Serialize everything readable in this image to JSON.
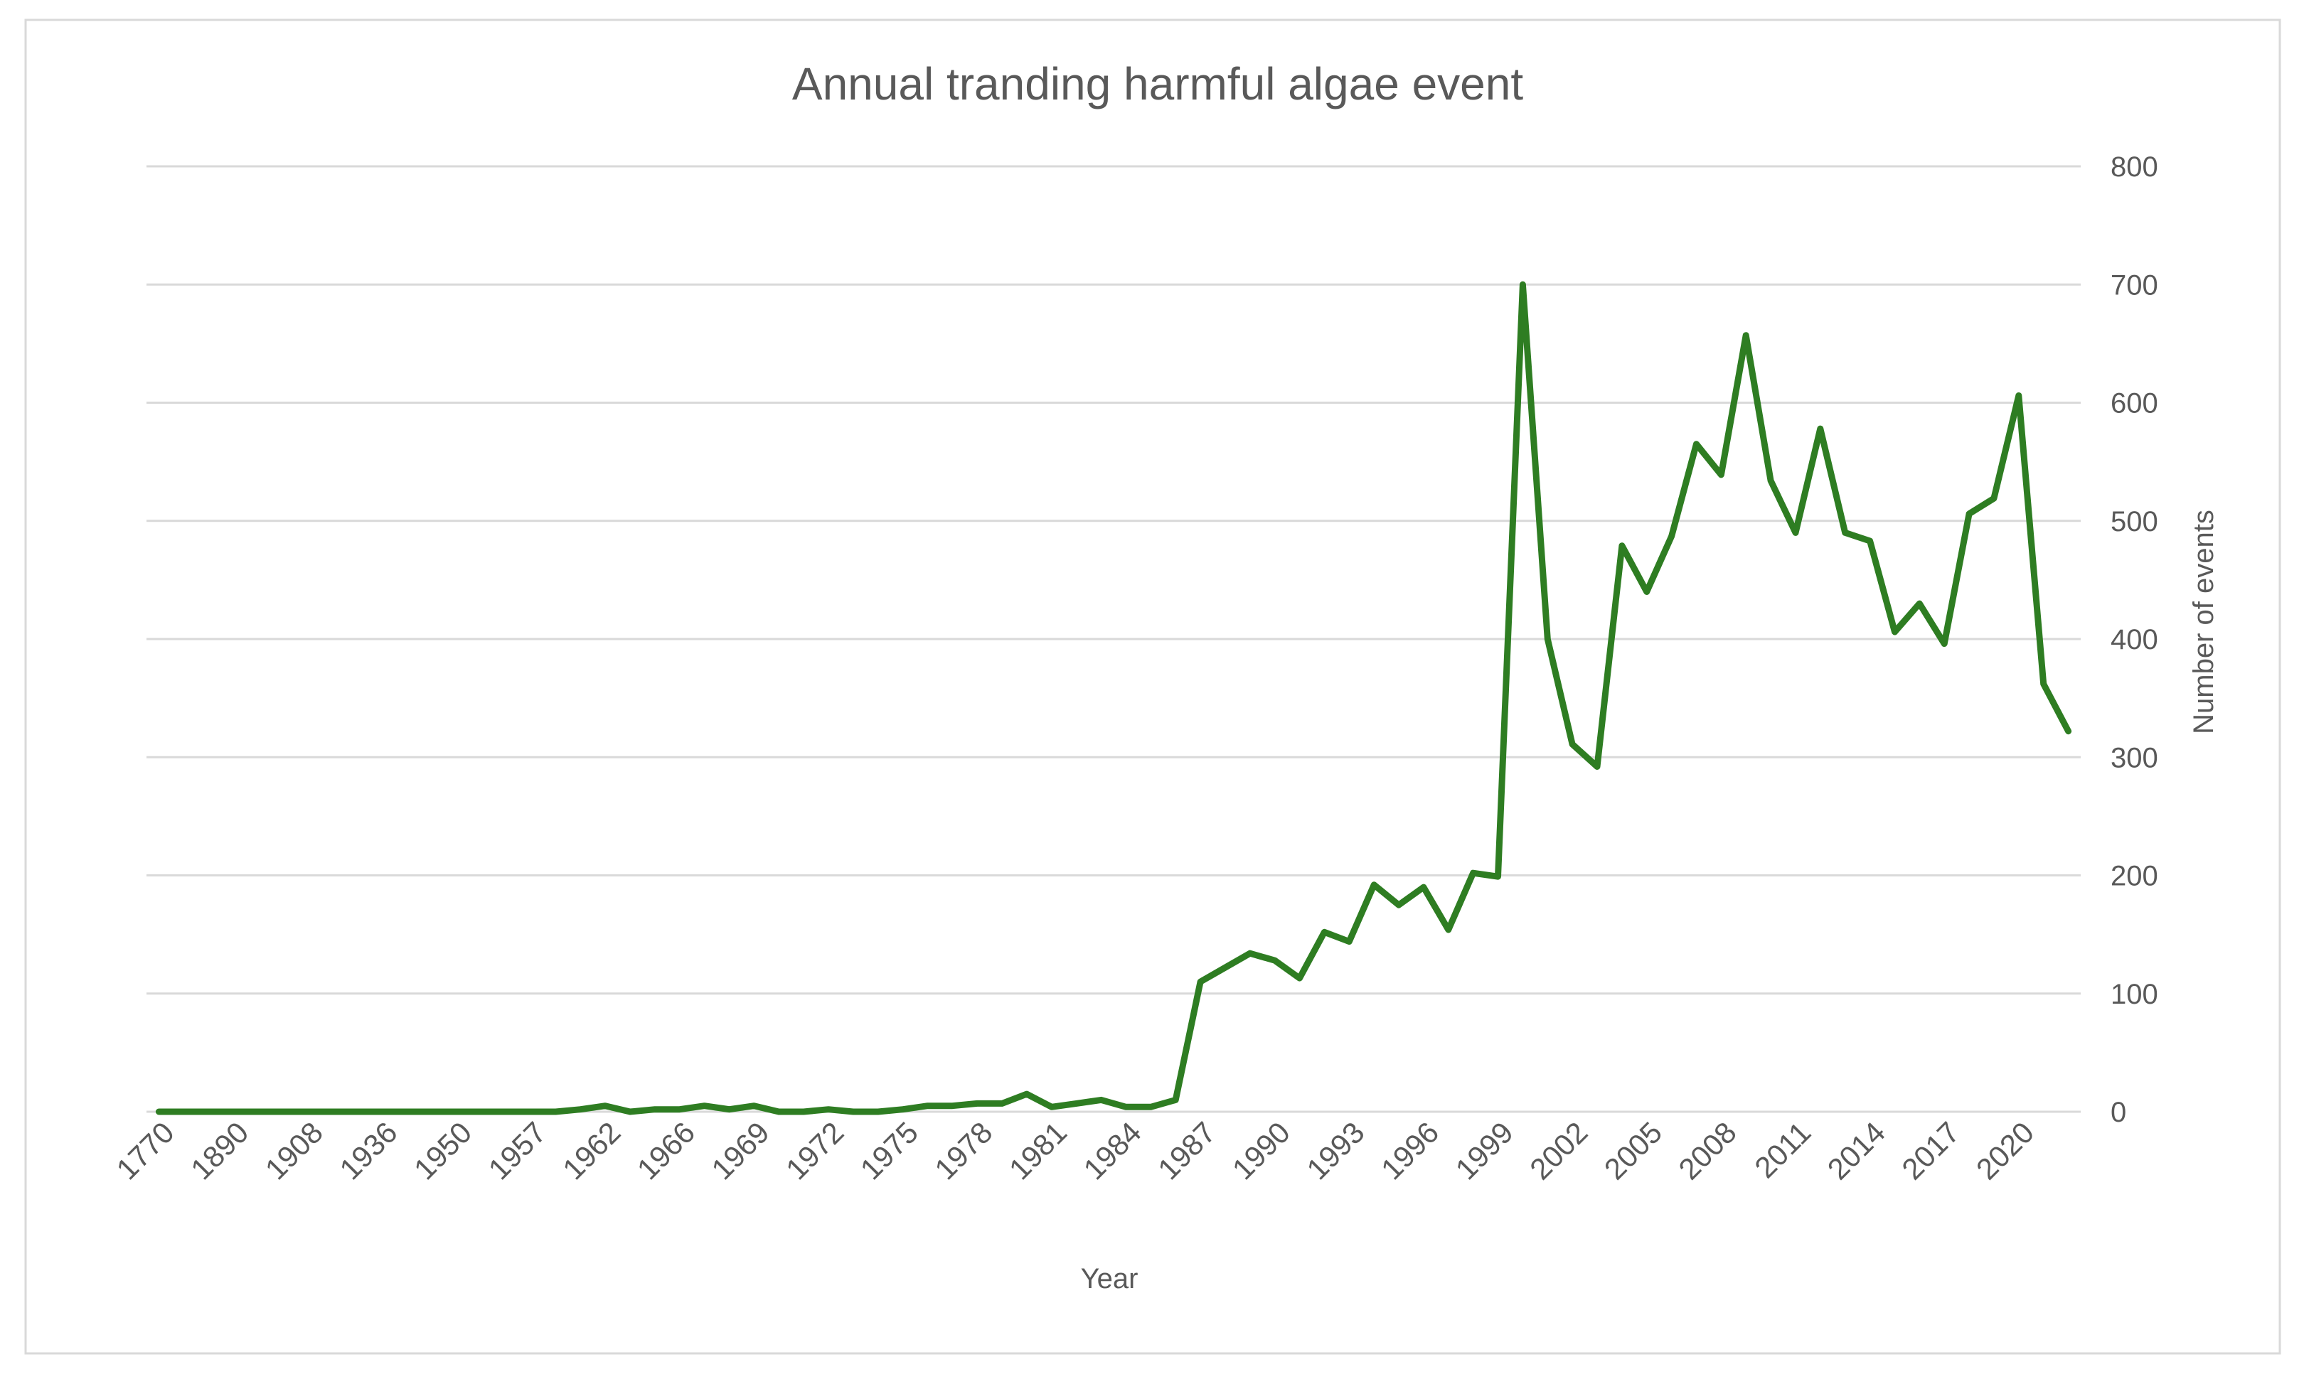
{
  "chart_data": {
    "type": "line",
    "title": "Annual tranding harmful algae event",
    "xlabel": "Year",
    "ylabel": "Number of events",
    "ylim": [
      0,
      800
    ],
    "yticks": [
      0,
      100,
      200,
      300,
      400,
      500,
      600,
      700,
      800
    ],
    "y_axis_side": "right",
    "grid": true,
    "legend": "none",
    "x_tick_labels": [
      "1770",
      "1890",
      "1908",
      "1936",
      "1950",
      "1957",
      "1962",
      "1966",
      "1969",
      "1972",
      "1975",
      "1978",
      "1981",
      "1984",
      "1987",
      "1990",
      "1993",
      "1996",
      "1999",
      "2002",
      "2005",
      "2008",
      "2011",
      "2014",
      "2017",
      "2020"
    ],
    "x_tick_every": 3,
    "series": [
      {
        "color": "#2e7d22",
        "values": [
          0,
          0,
          0,
          0,
          0,
          0,
          0,
          0,
          0,
          0,
          0,
          0,
          0,
          0,
          0,
          0,
          0,
          2,
          5,
          0,
          2,
          2,
          5,
          2,
          5,
          0,
          0,
          2,
          0,
          0,
          2,
          5,
          5,
          7,
          7,
          15,
          4,
          7,
          10,
          4,
          4,
          10,
          110,
          122,
          134,
          128,
          113,
          152,
          144,
          192,
          175,
          190,
          154,
          202,
          199,
          700,
          400,
          311,
          292,
          479,
          440,
          487,
          565,
          539,
          657,
          534,
          490,
          578,
          490,
          483,
          406,
          430,
          396,
          506,
          519,
          606,
          362,
          322
        ]
      }
    ]
  }
}
